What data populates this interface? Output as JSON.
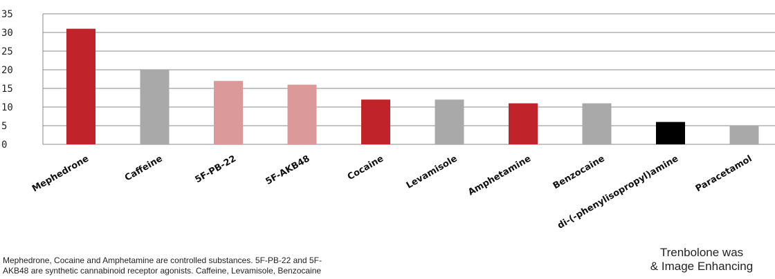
{
  "chart_data": {
    "type": "bar",
    "categories": [
      "Mephedrone",
      "Caffeine",
      "5F-PB-22",
      "5F-AKB48",
      "Cocaine",
      "Levamisole",
      "Amphetamine",
      "Benzocaine",
      "di-(-phenylisopropyl)amine",
      "Paracetamol"
    ],
    "values": [
      31,
      20,
      17,
      16,
      12,
      12,
      11,
      11,
      6,
      5
    ],
    "colors": [
      "#c0232a",
      "#a9a9a9",
      "#dc9999",
      "#dc9999",
      "#c0232a",
      "#a9a9a9",
      "#c0232a",
      "#a9a9a9",
      "#000000",
      "#a9a9a9"
    ],
    "y_ticks": [
      "35",
      "30",
      "25",
      "20",
      "15",
      "10",
      "5",
      "0"
    ],
    "ylim": [
      0,
      35
    ],
    "grid": true,
    "title": "",
    "xlabel": "",
    "ylabel": ""
  },
  "footnote": "Mephedrone, Cocaine and Amphetamine are controlled substances. 5F-PB-22 and 5F-AKB48 are synthetic cannabinoid receptor agonists. Caffeine, Levamisole, Benzocaine",
  "side_note": [
    "Trenbolone was",
    "& Image Enhancing"
  ]
}
